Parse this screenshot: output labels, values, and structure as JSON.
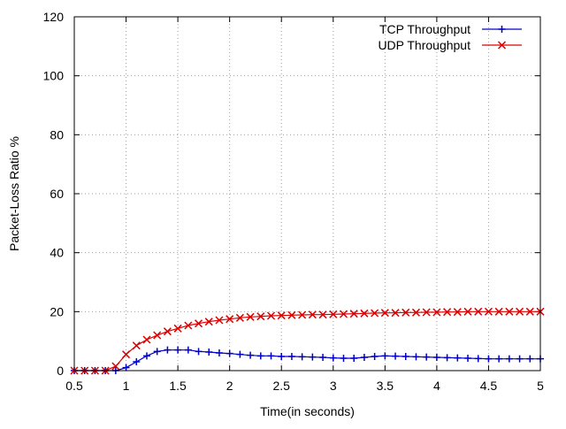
{
  "chart_data": {
    "type": "line",
    "title": "",
    "xlabel": "Time(in seconds)",
    "ylabel": "Packet-Loss Ratio %",
    "xlim": [
      0.5,
      5
    ],
    "ylim": [
      0,
      120
    ],
    "x_ticks": [
      0.5,
      1,
      1.5,
      2,
      2.5,
      3,
      3.5,
      4,
      4.5,
      5
    ],
    "x_tick_labels": [
      "0.5",
      "1",
      "1.5",
      "2",
      "2.5",
      "3",
      "3.5",
      "4",
      "4.5",
      "5"
    ],
    "y_ticks": [
      0,
      20,
      40,
      60,
      80,
      100,
      120
    ],
    "y_tick_labels": [
      "0",
      "20",
      "40",
      "60",
      "80",
      "100",
      "120"
    ],
    "grid": true,
    "legend_position": "top-right",
    "series": [
      {
        "name": "TCP Throughput",
        "color": "#0000cc",
        "marker": "plus",
        "x": [
          0.5,
          0.6,
          0.7,
          0.8,
          0.9,
          1.0,
          1.1,
          1.2,
          1.3,
          1.4,
          1.5,
          1.6,
          1.7,
          1.8,
          1.9,
          2.0,
          2.1,
          2.2,
          2.3,
          2.4,
          2.5,
          2.6,
          2.7,
          2.8,
          2.9,
          3.0,
          3.1,
          3.2,
          3.3,
          3.4,
          3.5,
          3.6,
          3.7,
          3.8,
          3.9,
          4.0,
          4.1,
          4.2,
          4.3,
          4.4,
          4.5,
          4.6,
          4.7,
          4.8,
          4.9,
          5.0
        ],
        "y": [
          0,
          0,
          0,
          0,
          0,
          1,
          3,
          5,
          6.5,
          7,
          7,
          7,
          6.5,
          6.3,
          6,
          5.8,
          5.5,
          5.2,
          5,
          5,
          4.8,
          4.8,
          4.7,
          4.6,
          4.5,
          4.3,
          4.2,
          4.2,
          4.5,
          4.8,
          5,
          4.9,
          4.8,
          4.7,
          4.6,
          4.5,
          4.4,
          4.3,
          4.2,
          4.1,
          4,
          4,
          4,
          4,
          4,
          4
        ]
      },
      {
        "name": "UDP Throughput",
        "color": "#dd0000",
        "marker": "x",
        "x": [
          0.5,
          0.6,
          0.7,
          0.8,
          0.9,
          1.0,
          1.1,
          1.2,
          1.3,
          1.4,
          1.5,
          1.6,
          1.7,
          1.8,
          1.9,
          2.0,
          2.1,
          2.2,
          2.3,
          2.4,
          2.5,
          2.6,
          2.7,
          2.8,
          2.9,
          3.0,
          3.1,
          3.2,
          3.3,
          3.4,
          3.5,
          3.6,
          3.7,
          3.8,
          3.9,
          4.0,
          4.1,
          4.2,
          4.3,
          4.4,
          4.5,
          4.6,
          4.7,
          4.8,
          4.9,
          5.0
        ],
        "y": [
          0,
          0,
          0,
          0,
          1.5,
          5.5,
          8.5,
          10.5,
          12,
          13.3,
          14.3,
          15.3,
          16,
          16.6,
          17.1,
          17.5,
          17.9,
          18.2,
          18.4,
          18.6,
          18.7,
          18.8,
          18.9,
          19,
          19,
          19.1,
          19.2,
          19.3,
          19.4,
          19.5,
          19.6,
          19.6,
          19.7,
          19.7,
          19.8,
          19.8,
          19.9,
          19.9,
          20,
          20,
          20,
          20,
          20,
          20,
          20,
          20
        ]
      }
    ]
  }
}
